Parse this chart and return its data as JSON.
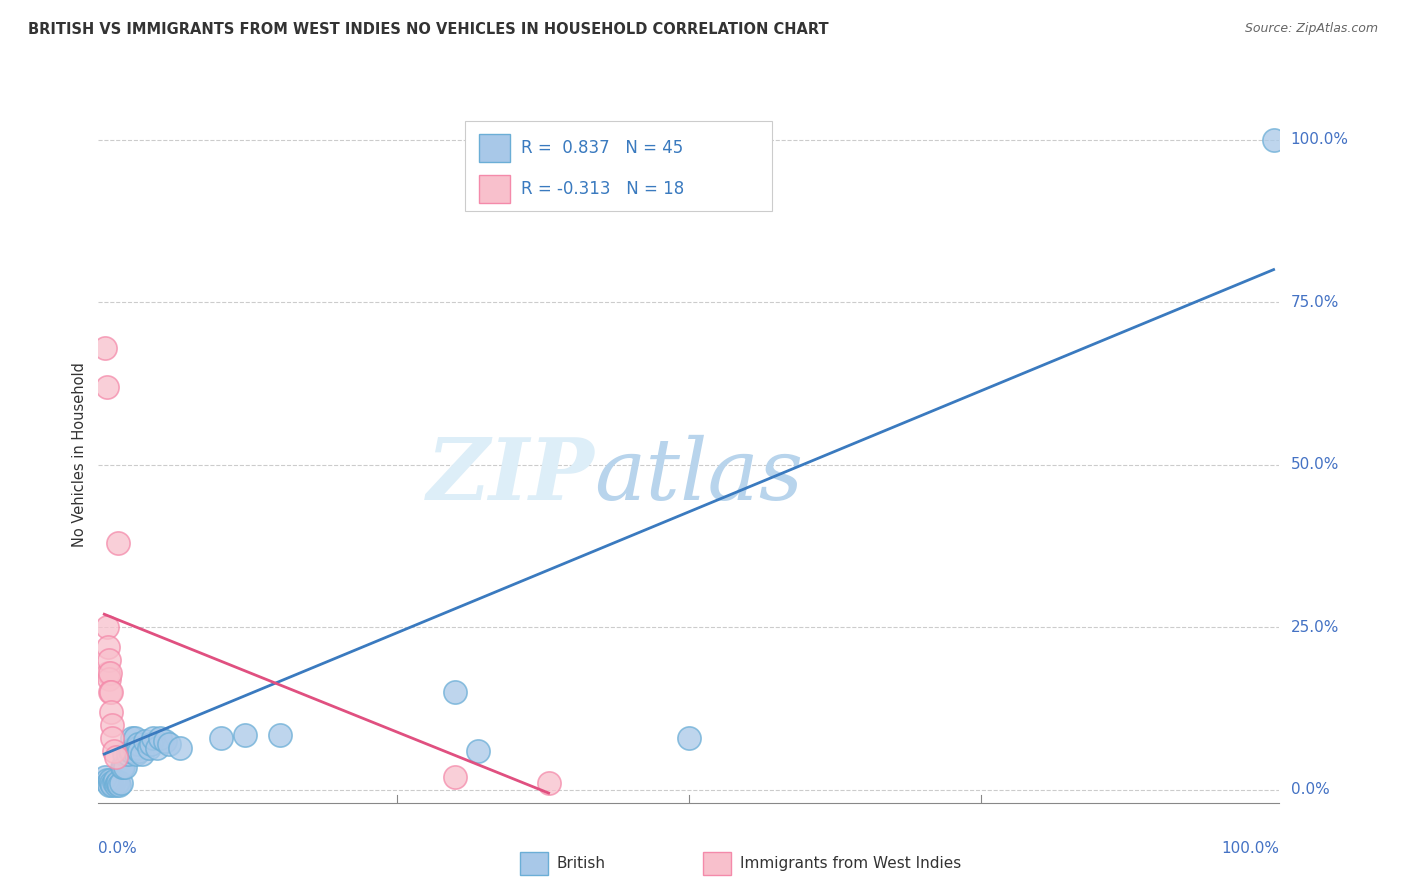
{
  "title": "BRITISH VS IMMIGRANTS FROM WEST INDIES NO VEHICLES IN HOUSEHOLD CORRELATION CHART",
  "source": "Source: ZipAtlas.com",
  "ylabel": "No Vehicles in Household",
  "ytick_labels": [
    "0.0%",
    "25.0%",
    "50.0%",
    "75.0%",
    "100.0%"
  ],
  "ytick_values": [
    0.0,
    0.25,
    0.5,
    0.75,
    1.0
  ],
  "legend_blue_R": "R =  0.837",
  "legend_blue_N": "N = 45",
  "legend_pink_R": "R = -0.313",
  "legend_pink_N": "N = 18",
  "legend_bottom_blue": "British",
  "legend_bottom_pink": "Immigrants from West Indies",
  "blue_color": "#a8c8e8",
  "blue_edge_color": "#6baed6",
  "pink_color": "#f8c0cc",
  "pink_edge_color": "#f48aaa",
  "blue_line_color": "#3a7abf",
  "pink_line_color": "#e05080",
  "blue_scatter": [
    [
      0.001,
      0.02
    ],
    [
      0.002,
      0.015
    ],
    [
      0.003,
      0.01
    ],
    [
      0.004,
      0.008
    ],
    [
      0.005,
      0.015
    ],
    [
      0.006,
      0.01
    ],
    [
      0.007,
      0.008
    ],
    [
      0.008,
      0.012
    ],
    [
      0.009,
      0.015
    ],
    [
      0.01,
      0.008
    ],
    [
      0.011,
      0.01
    ],
    [
      0.012,
      0.012
    ],
    [
      0.013,
      0.008
    ],
    [
      0.014,
      0.01
    ],
    [
      0.015,
      0.035
    ],
    [
      0.016,
      0.035
    ],
    [
      0.017,
      0.055
    ],
    [
      0.018,
      0.035
    ],
    [
      0.02,
      0.055
    ],
    [
      0.022,
      0.06
    ],
    [
      0.023,
      0.06
    ],
    [
      0.024,
      0.08
    ],
    [
      0.025,
      0.065
    ],
    [
      0.026,
      0.08
    ],
    [
      0.027,
      0.055
    ],
    [
      0.028,
      0.065
    ],
    [
      0.029,
      0.07
    ],
    [
      0.03,
      0.06
    ],
    [
      0.032,
      0.055
    ],
    [
      0.035,
      0.075
    ],
    [
      0.038,
      0.065
    ],
    [
      0.04,
      0.07
    ],
    [
      0.042,
      0.08
    ],
    [
      0.045,
      0.065
    ],
    [
      0.048,
      0.08
    ],
    [
      0.052,
      0.075
    ],
    [
      0.055,
      0.07
    ],
    [
      0.065,
      0.065
    ],
    [
      0.1,
      0.08
    ],
    [
      0.12,
      0.085
    ],
    [
      0.15,
      0.085
    ],
    [
      0.3,
      0.15
    ],
    [
      0.32,
      0.06
    ],
    [
      0.5,
      0.08
    ],
    [
      1.0,
      1.0
    ]
  ],
  "pink_scatter": [
    [
      0.001,
      0.68
    ],
    [
      0.002,
      0.62
    ],
    [
      0.002,
      0.25
    ],
    [
      0.003,
      0.22
    ],
    [
      0.003,
      0.18
    ],
    [
      0.004,
      0.2
    ],
    [
      0.004,
      0.17
    ],
    [
      0.005,
      0.18
    ],
    [
      0.005,
      0.15
    ],
    [
      0.006,
      0.15
    ],
    [
      0.006,
      0.12
    ],
    [
      0.007,
      0.1
    ],
    [
      0.007,
      0.08
    ],
    [
      0.008,
      0.06
    ],
    [
      0.01,
      0.05
    ],
    [
      0.012,
      0.38
    ],
    [
      0.3,
      0.02
    ],
    [
      0.38,
      0.01
    ]
  ],
  "blue_line_x": [
    0.0,
    1.0
  ],
  "blue_line_y": [
    0.055,
    0.8
  ],
  "pink_line_x": [
    0.0,
    0.38
  ],
  "pink_line_y": [
    0.27,
    -0.005
  ],
  "xlim": [
    -0.005,
    1.005
  ],
  "ylim": [
    -0.02,
    1.05
  ],
  "grid_color": "#cccccc",
  "title_color": "#333333",
  "axis_color": "#4472c4",
  "tick_color": "#888888"
}
